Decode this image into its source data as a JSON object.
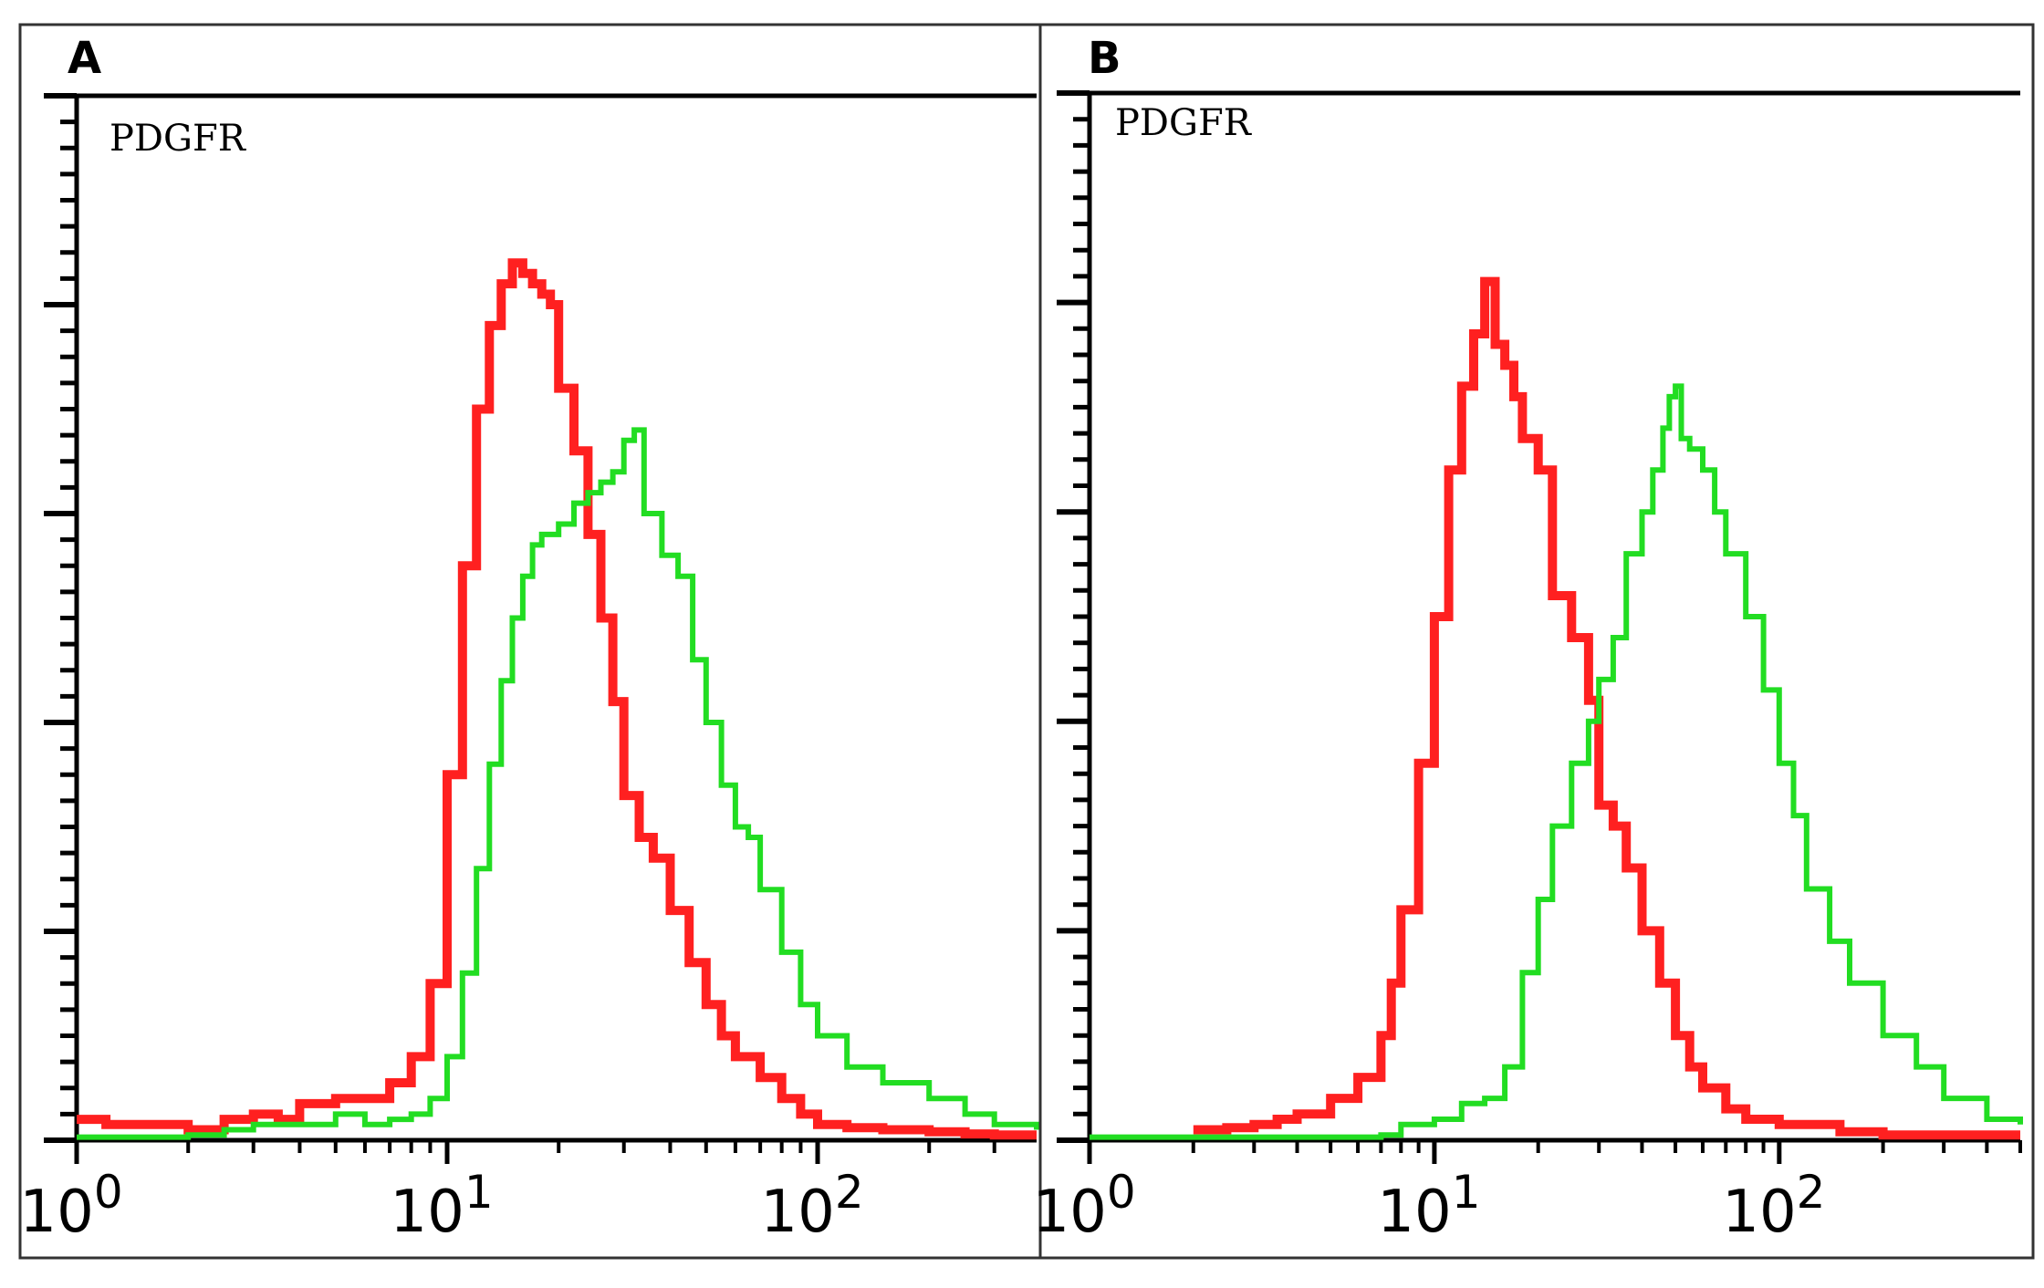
{
  "chart_data": [
    {
      "type": "line",
      "panel_label": "A",
      "annotation": "PDGFR",
      "title": "",
      "xlabel": "",
      "ylabel": "",
      "x_scale": "log",
      "xlim": [
        1,
        390
      ],
      "ylim": [
        0,
        100
      ],
      "x_tick_labels": [
        {
          "value": 1,
          "base": "10",
          "exp": "0"
        },
        {
          "value": 10,
          "base": "10",
          "exp": "1"
        },
        {
          "value": 100,
          "base": "10",
          "exp": "2"
        }
      ],
      "y_major_ticks": [
        0,
        20,
        40,
        60,
        80,
        100
      ],
      "grid": false,
      "legend": "none",
      "series": [
        {
          "color": "#ff2020",
          "x": [
            1.0,
            1.2,
            1.5,
            2.0,
            2.5,
            3.0,
            3.5,
            4.0,
            5.0,
            6.0,
            7.0,
            8.0,
            9.0,
            10.0,
            11.0,
            12.0,
            13.0,
            14.0,
            15.0,
            16.0,
            17.0,
            18.0,
            19.0,
            20.0,
            22.0,
            24.0,
            26.0,
            28.0,
            30.0,
            33.0,
            36.0,
            40.0,
            45.0,
            50.0,
            55.0,
            60.0,
            70.0,
            80.0,
            90.0,
            100.0,
            120.0,
            150.0,
            200.0,
            250.0,
            300.0,
            390.0
          ],
          "y": [
            2.0,
            1.5,
            1.5,
            1.0,
            2.0,
            2.5,
            2.0,
            3.5,
            4.0,
            4.0,
            5.5,
            8.0,
            15.0,
            35.0,
            55.0,
            70.0,
            78.0,
            82.0,
            84.0,
            83.0,
            82.0,
            81.0,
            80.0,
            72.0,
            66.0,
            58.0,
            50.0,
            42.0,
            33.0,
            29.0,
            27.0,
            22.0,
            17.0,
            13.0,
            10.0,
            8.0,
            6.0,
            4.0,
            2.5,
            1.5,
            1.2,
            1.0,
            0.8,
            0.6,
            0.5,
            0.5
          ]
        },
        {
          "color": "#22dd22",
          "x": [
            1.0,
            1.5,
            2.0,
            2.5,
            3.0,
            3.5,
            4.0,
            5.0,
            6.0,
            7.0,
            8.0,
            9.0,
            10.0,
            11.0,
            12.0,
            13.0,
            14.0,
            15.0,
            16.0,
            17.0,
            18.0,
            20.0,
            22.0,
            24.0,
            26.0,
            28.0,
            30.0,
            32.0,
            34.0,
            38.0,
            42.0,
            46.0,
            50.0,
            55.0,
            60.0,
            65.0,
            70.0,
            80.0,
            90.0,
            100.0,
            120.0,
            150.0,
            200.0,
            250.0,
            300.0,
            390.0
          ],
          "y": [
            0.3,
            0.3,
            0.5,
            1.0,
            1.5,
            1.5,
            1.5,
            2.5,
            1.5,
            2.0,
            2.5,
            4.0,
            8.0,
            16.0,
            26.0,
            36.0,
            44.0,
            50.0,
            54.0,
            57.0,
            58.0,
            59.0,
            61.0,
            62.0,
            63.0,
            64.0,
            67.0,
            68.0,
            60.0,
            56.0,
            54.0,
            46.0,
            40.0,
            34.0,
            30.0,
            29.0,
            24.0,
            18.0,
            13.0,
            10.0,
            7.0,
            5.5,
            4.0,
            2.5,
            1.5,
            1.0
          ]
        }
      ]
    },
    {
      "type": "line",
      "panel_label": "B",
      "annotation": "PDGFR",
      "title": "",
      "xlabel": "",
      "ylabel": "",
      "x_scale": "log",
      "xlim": [
        1,
        500
      ],
      "ylim": [
        0,
        100
      ],
      "x_tick_labels": [
        {
          "value": 1,
          "base": "10",
          "exp": "0"
        },
        {
          "value": 10,
          "base": "10",
          "exp": "1"
        },
        {
          "value": 100,
          "base": "10",
          "exp": "2"
        }
      ],
      "y_major_ticks": [
        0,
        20,
        40,
        60,
        80,
        100
      ],
      "grid": false,
      "legend": "none",
      "series": [
        {
          "color": "#ff2020",
          "x": [
            2.0,
            2.5,
            3.0,
            3.5,
            4.0,
            5.0,
            6.0,
            7.0,
            7.5,
            8.0,
            9.0,
            10.0,
            11.0,
            12.0,
            13.0,
            14.0,
            15.0,
            16.0,
            17.0,
            18.0,
            20.0,
            22.0,
            25.0,
            28.0,
            30.0,
            33.0,
            36.0,
            40.0,
            45.0,
            50.0,
            55.0,
            60.0,
            70.0,
            80.0,
            100.0,
            150.0,
            200.0,
            300.0,
            500.0
          ],
          "y": [
            1.0,
            1.2,
            1.5,
            2.0,
            2.5,
            4.0,
            6.0,
            10.0,
            15.0,
            22.0,
            36.0,
            50.0,
            64.0,
            72.0,
            77.0,
            82.0,
            76.0,
            74.0,
            71.0,
            67.0,
            64.0,
            52.0,
            48.0,
            42.0,
            32.0,
            30.0,
            26.0,
            20.0,
            15.0,
            10.0,
            7.0,
            5.0,
            3.0,
            2.0,
            1.5,
            0.8,
            0.5,
            0.5,
            0.5
          ]
        },
        {
          "color": "#22dd22",
          "x": [
            1.0,
            2.0,
            3.0,
            4.0,
            6.0,
            7.0,
            8.0,
            9.0,
            10.0,
            12.0,
            14.0,
            16.0,
            18.0,
            20.0,
            22.0,
            25.0,
            28.0,
            30.0,
            33.0,
            36.0,
            40.0,
            43.0,
            46.0,
            48.0,
            50.0,
            52.0,
            55.0,
            60.0,
            65.0,
            70.0,
            80.0,
            90.0,
            100.0,
            110.0,
            120.0,
            140.0,
            160.0,
            200.0,
            250.0,
            300.0,
            400.0,
            500.0
          ],
          "y": [
            0.3,
            0.3,
            0.3,
            0.3,
            0.3,
            0.5,
            1.5,
            1.5,
            2.0,
            3.5,
            4.0,
            7.0,
            16.0,
            23.0,
            30.0,
            36.0,
            40.0,
            44.0,
            48.0,
            56.0,
            60.0,
            64.0,
            68.0,
            71.0,
            72.0,
            67.0,
            66.0,
            64.0,
            60.0,
            56.0,
            50.0,
            43.0,
            36.0,
            31.0,
            24.0,
            19.0,
            15.0,
            10.0,
            7.0,
            4.0,
            2.0,
            1.5
          ]
        }
      ]
    }
  ]
}
